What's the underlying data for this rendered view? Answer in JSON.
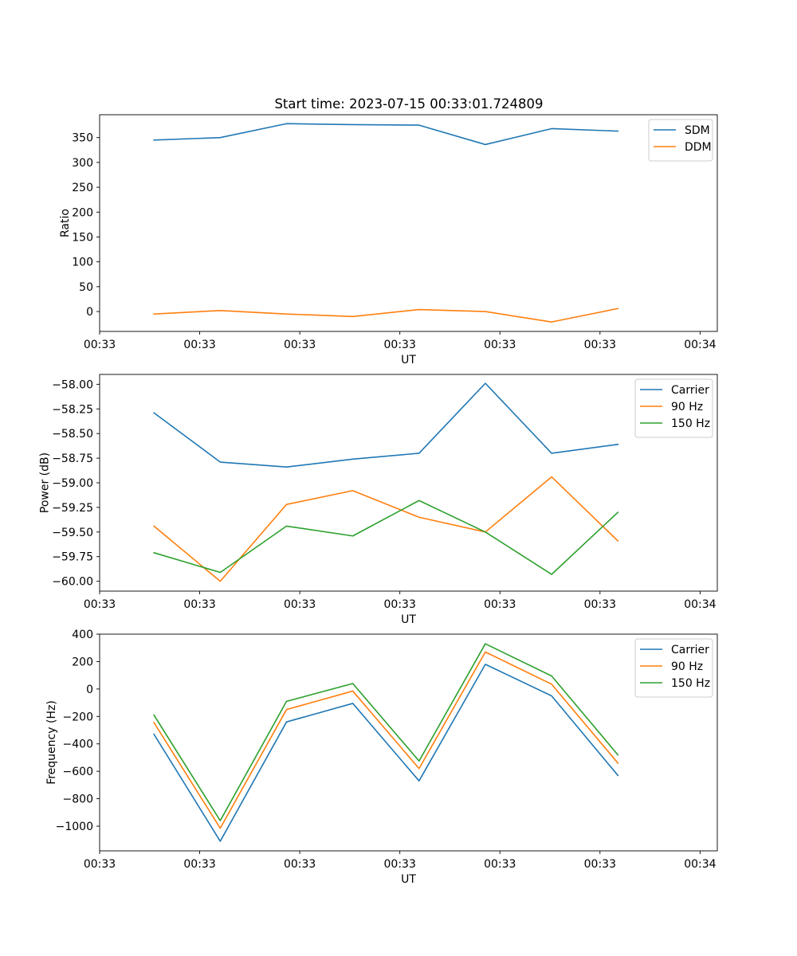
{
  "figure_title": "Start time: 2023-07-15 00:33:01.724809",
  "chart_data": [
    {
      "type": "line",
      "title": "Start time: 2023-07-15 00:33:01.724809",
      "xlabel": "UT",
      "ylabel": "Ratio",
      "x": [
        1,
        2,
        3,
        4,
        5,
        6,
        7,
        8
      ],
      "xlim": [
        0.18,
        9.5
      ],
      "x_ticks": [
        0.18,
        1.69,
        3.2,
        4.71,
        6.22,
        7.73,
        9.24
      ],
      "x_tick_labels": [
        "00:33",
        "00:33",
        "00:33",
        "00:33",
        "00:33",
        "00:33",
        "00:34"
      ],
      "ylim": [
        -40,
        396
      ],
      "y_ticks": [
        0,
        50,
        100,
        150,
        200,
        250,
        300,
        350
      ],
      "y_tick_labels": [
        "0",
        "50",
        "100",
        "150",
        "200",
        "250",
        "300",
        "350"
      ],
      "legend": "top-right",
      "series": [
        {
          "name": "SDM",
          "color": "#1f77b4",
          "values": [
            345,
            350,
            378,
            376,
            375,
            336,
            368,
            363
          ]
        },
        {
          "name": "DDM",
          "color": "#ff7f0e",
          "values": [
            -5,
            2,
            -5,
            -10,
            4,
            0,
            -21,
            6
          ]
        }
      ]
    },
    {
      "type": "line",
      "title": "",
      "xlabel": "UT",
      "ylabel": "Power (dB)",
      "x": [
        1,
        2,
        3,
        4,
        5,
        6,
        7,
        8
      ],
      "xlim": [
        0.18,
        9.5
      ],
      "x_ticks": [
        0.18,
        1.69,
        3.2,
        4.71,
        6.22,
        7.73,
        9.24
      ],
      "x_tick_labels": [
        "00:33",
        "00:33",
        "00:33",
        "00:33",
        "00:33",
        "00:33",
        "00:34"
      ],
      "ylim": [
        -60.1,
        -57.9
      ],
      "y_ticks": [
        -60.0,
        -59.75,
        -59.5,
        -59.25,
        -59.0,
        -58.75,
        -58.5,
        -58.25,
        -58.0
      ],
      "y_tick_labels": [
        "−60.00",
        "−59.75",
        "−59.50",
        "−59.25",
        "−59.00",
        "−58.75",
        "−58.50",
        "−58.25",
        "−58.00"
      ],
      "legend": "top-right",
      "series": [
        {
          "name": "Carrier",
          "color": "#1f77b4",
          "values": [
            -58.29,
            -58.79,
            -58.84,
            -58.76,
            -58.7,
            -57.99,
            -58.7,
            -58.61
          ]
        },
        {
          "name": "90 Hz",
          "color": "#ff7f0e",
          "values": [
            -59.44,
            -60.0,
            -59.22,
            -59.08,
            -59.35,
            -59.5,
            -58.94,
            -59.59
          ]
        },
        {
          "name": "150 Hz",
          "color": "#2ca02c",
          "values": [
            -59.71,
            -59.91,
            -59.44,
            -59.54,
            -59.18,
            -59.5,
            -59.93,
            -59.3
          ]
        }
      ]
    },
    {
      "type": "line",
      "title": "",
      "xlabel": "UT",
      "ylabel": "Frequency (Hz)",
      "x": [
        1,
        2,
        3,
        4,
        5,
        6,
        7,
        8
      ],
      "xlim": [
        0.18,
        9.5
      ],
      "x_ticks": [
        0.18,
        1.69,
        3.2,
        4.71,
        6.22,
        7.73,
        9.24
      ],
      "x_tick_labels": [
        "00:33",
        "00:33",
        "00:33",
        "00:33",
        "00:33",
        "00:33",
        "00:34"
      ],
      "ylim": [
        -1180,
        400
      ],
      "y_ticks": [
        -1000,
        -800,
        -600,
        -400,
        -200,
        0,
        200,
        400
      ],
      "y_tick_labels": [
        "−1000",
        "−800",
        "−600",
        "−400",
        "−200",
        "0",
        "200",
        "400"
      ],
      "legend": "top-right",
      "series": [
        {
          "name": "Carrier",
          "color": "#1f77b4",
          "values": [
            -330,
            -1110,
            -240,
            -105,
            -670,
            180,
            -50,
            -630
          ]
        },
        {
          "name": "90 Hz",
          "color": "#ff7f0e",
          "values": [
            -245,
            -1015,
            -150,
            -15,
            -580,
            270,
            35,
            -540
          ]
        },
        {
          "name": "150 Hz",
          "color": "#2ca02c",
          "values": [
            -190,
            -960,
            -90,
            40,
            -525,
            330,
            95,
            -480
          ]
        }
      ]
    }
  ]
}
